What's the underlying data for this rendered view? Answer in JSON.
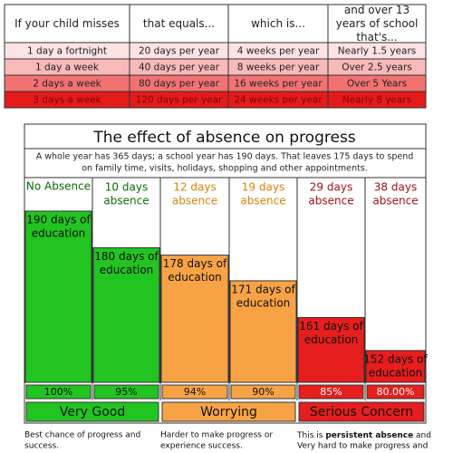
{
  "table": {
    "header": [
      "If your child misses",
      "that equals...",
      "which is...",
      "and over 13 years of school that's..."
    ],
    "rows": [
      [
        "1 day a fortnight",
        "20 days per year",
        "4 weeks per year",
        "Nearly 1.5 years"
      ],
      [
        "1 day a week",
        "40 days per year",
        "8 weeks per year",
        "Over 2.5 years"
      ],
      [
        "2 days a week",
        "80 days per year",
        "16 weeks per year",
        "Over 5 Years"
      ],
      [
        "3 days a week",
        "120 days per year",
        "24 weeks per year",
        "Nearly 8 years"
      ]
    ]
  },
  "panel": {
    "title": "The effect of absence on progress",
    "subtitle": [
      "A whole year has 365 days; a school year has 190 days.  That leaves 175 days to spend",
      "on family time, visits, holidays, shopping and other appointments."
    ],
    "columns": [
      {
        "header": [
          "No Absence"
        ],
        "label": [
          "190 days of",
          "education"
        ],
        "days": 190,
        "percent": "100%"
      },
      {
        "header": [
          "10 days",
          "absence"
        ],
        "label": [
          "180 days of",
          "education"
        ],
        "days": 180,
        "percent": "95%"
      },
      {
        "header": [
          "12 days",
          "absence"
        ],
        "label": [
          "178 days of",
          "education"
        ],
        "days": 178,
        "percent": "94%"
      },
      {
        "header": [
          "19 days",
          "absence"
        ],
        "label": [
          "171 days of",
          "education"
        ],
        "days": 171,
        "percent": "90%"
      },
      {
        "header": [
          "29 days",
          "absence"
        ],
        "label": [
          "161 days of",
          "education"
        ],
        "days": 161,
        "percent": "85%"
      },
      {
        "header": [
          "38 days",
          "absence"
        ],
        "label": [
          "152 days of",
          "education"
        ],
        "days": 152,
        "percent": "80.00%"
      }
    ],
    "ratings": [
      "Very Good",
      "Worrying",
      "Serious Concern"
    ],
    "notes": [
      [
        "Best chance of progress and",
        "success."
      ],
      [
        "Harder to make progress or",
        "experience success."
      ],
      [
        "This is ",
        "persistent absence",
        " and",
        "Very hard to make progress and"
      ]
    ]
  }
}
